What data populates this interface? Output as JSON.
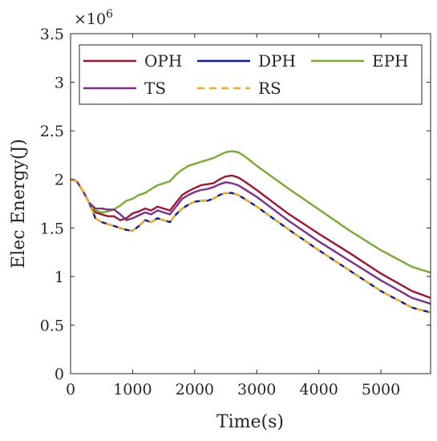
{
  "chart_data": {
    "type": "line",
    "xlabel": "Time(s)",
    "ylabel": "Elec Energy(J)",
    "xlim": [
      0,
      5800
    ],
    "ylim": [
      0,
      3.5
    ],
    "y_exponent_label": "×10",
    "y_exponent_power": "6",
    "x_ticks": [
      0,
      1000,
      2000,
      3000,
      4000,
      5000
    ],
    "x_tick_labels": [
      "0",
      "1000",
      "2000",
      "3000",
      "4000",
      "5000"
    ],
    "y_ticks": [
      0,
      0.5,
      1,
      1.5,
      2,
      2.5,
      3,
      3.5
    ],
    "y_tick_labels": [
      "0",
      "0.5",
      "1",
      "1.5",
      "2",
      "2.5",
      "3",
      "3.5"
    ],
    "grid": false,
    "legend_position": "top",
    "series": [
      {
        "name": "OPH",
        "color": "#A2142F",
        "dashed": false,
        "x": [
          0,
          100,
          200,
          300,
          400,
          500,
          600,
          700,
          800,
          900,
          1000,
          1100,
          1200,
          1300,
          1400,
          1500,
          1600,
          1700,
          1800,
          1900,
          2000,
          2100,
          2200,
          2300,
          2400,
          2500,
          2600,
          2700,
          2800,
          3000,
          3500,
          4000,
          4500,
          5000,
          5500,
          5800
        ],
        "y": [
          2.0,
          1.98,
          1.88,
          1.76,
          1.66,
          1.64,
          1.62,
          1.62,
          1.58,
          1.6,
          1.65,
          1.67,
          1.7,
          1.68,
          1.72,
          1.7,
          1.68,
          1.76,
          1.84,
          1.88,
          1.91,
          1.94,
          1.95,
          1.96,
          2.0,
          2.03,
          2.04,
          2.02,
          1.98,
          1.89,
          1.65,
          1.44,
          1.24,
          1.03,
          0.85,
          0.78
        ]
      },
      {
        "name": "DPH",
        "color": "#0A1AA0",
        "dashed": false,
        "x": [
          0,
          100,
          200,
          300,
          400,
          500,
          600,
          700,
          800,
          900,
          1000,
          1100,
          1200,
          1300,
          1400,
          1500,
          1600,
          1700,
          1800,
          1900,
          2000,
          2100,
          2200,
          2300,
          2400,
          2500,
          2600,
          2700,
          2800,
          3000,
          3500,
          4000,
          4500,
          5000,
          5500,
          5800
        ],
        "y": [
          2.0,
          1.98,
          1.88,
          1.76,
          1.6,
          1.56,
          1.54,
          1.52,
          1.5,
          1.48,
          1.47,
          1.52,
          1.58,
          1.56,
          1.6,
          1.58,
          1.56,
          1.64,
          1.7,
          1.74,
          1.77,
          1.78,
          1.78,
          1.8,
          1.84,
          1.86,
          1.86,
          1.84,
          1.8,
          1.72,
          1.49,
          1.27,
          1.06,
          0.85,
          0.68,
          0.63
        ]
      },
      {
        "name": "EPH",
        "color": "#77AC30",
        "dashed": false,
        "x": [
          0,
          100,
          200,
          300,
          400,
          500,
          600,
          700,
          800,
          900,
          1000,
          1100,
          1200,
          1300,
          1400,
          1500,
          1600,
          1700,
          1800,
          1900,
          2000,
          2100,
          2200,
          2300,
          2400,
          2500,
          2600,
          2700,
          2800,
          3000,
          3500,
          4000,
          4500,
          5000,
          5500,
          5800
        ],
        "y": [
          2.0,
          1.98,
          1.88,
          1.76,
          1.68,
          1.66,
          1.67,
          1.69,
          1.73,
          1.78,
          1.8,
          1.84,
          1.86,
          1.9,
          1.94,
          1.96,
          1.98,
          2.05,
          2.1,
          2.14,
          2.16,
          2.18,
          2.2,
          2.22,
          2.25,
          2.28,
          2.29,
          2.28,
          2.24,
          2.14,
          1.91,
          1.69,
          1.47,
          1.27,
          1.1,
          1.04
        ]
      },
      {
        "name": "TS",
        "color": "#7E2F8E",
        "dashed": false,
        "x": [
          0,
          100,
          200,
          300,
          400,
          500,
          600,
          700,
          800,
          900,
          1000,
          1100,
          1200,
          1300,
          1400,
          1500,
          1600,
          1700,
          1800,
          1900,
          2000,
          2100,
          2200,
          2300,
          2400,
          2500,
          2600,
          2700,
          2800,
          3000,
          3500,
          4000,
          4500,
          5000,
          5500,
          5800
        ],
        "y": [
          2.0,
          1.98,
          1.88,
          1.76,
          1.7,
          1.7,
          1.69,
          1.69,
          1.64,
          1.58,
          1.6,
          1.63,
          1.66,
          1.64,
          1.68,
          1.66,
          1.64,
          1.72,
          1.8,
          1.84,
          1.87,
          1.89,
          1.9,
          1.92,
          1.95,
          1.97,
          1.96,
          1.94,
          1.9,
          1.82,
          1.58,
          1.36,
          1.16,
          0.96,
          0.78,
          0.72
        ]
      },
      {
        "name": "RS",
        "color": "#EDB120",
        "dashed": true,
        "x": [
          0,
          100,
          200,
          300,
          400,
          500,
          600,
          700,
          800,
          900,
          1000,
          1100,
          1200,
          1300,
          1400,
          1500,
          1600,
          1700,
          1800,
          1900,
          2000,
          2100,
          2200,
          2300,
          2400,
          2500,
          2600,
          2700,
          2800,
          3000,
          3500,
          4000,
          4500,
          5000,
          5500,
          5800
        ],
        "y": [
          2.0,
          1.98,
          1.88,
          1.76,
          1.6,
          1.56,
          1.54,
          1.52,
          1.5,
          1.48,
          1.47,
          1.52,
          1.58,
          1.56,
          1.6,
          1.58,
          1.56,
          1.64,
          1.7,
          1.74,
          1.77,
          1.78,
          1.78,
          1.8,
          1.84,
          1.86,
          1.86,
          1.84,
          1.8,
          1.72,
          1.49,
          1.27,
          1.06,
          0.85,
          0.68,
          0.63
        ]
      }
    ]
  }
}
